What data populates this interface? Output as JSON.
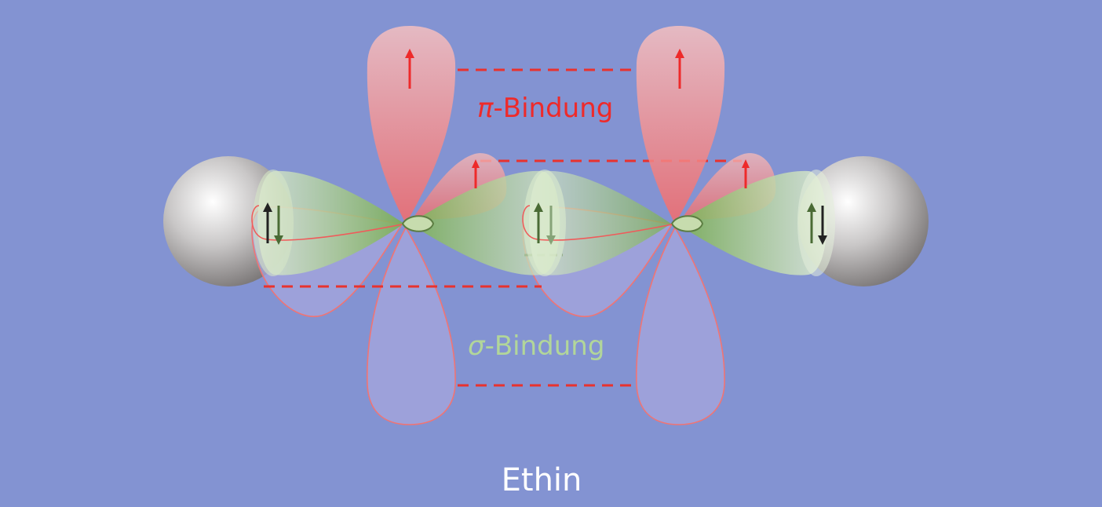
{
  "title": "Ethin",
  "pi_bond": {
    "symbol": "π",
    "label": "-Bindung"
  },
  "sigma_bond": {
    "symbol": "σ",
    "label": "-Bindung"
  },
  "colors": {
    "background": "#8393d2",
    "pi_lobe": "#f07878",
    "pi_label": "#ee2a2a",
    "sigma_lobe": "#7fb15a",
    "sigma_label": "#b2d69a",
    "dashed_line": "#e8322e",
    "hydrogen": "#bdbdbd",
    "title": "#ffffff"
  }
}
